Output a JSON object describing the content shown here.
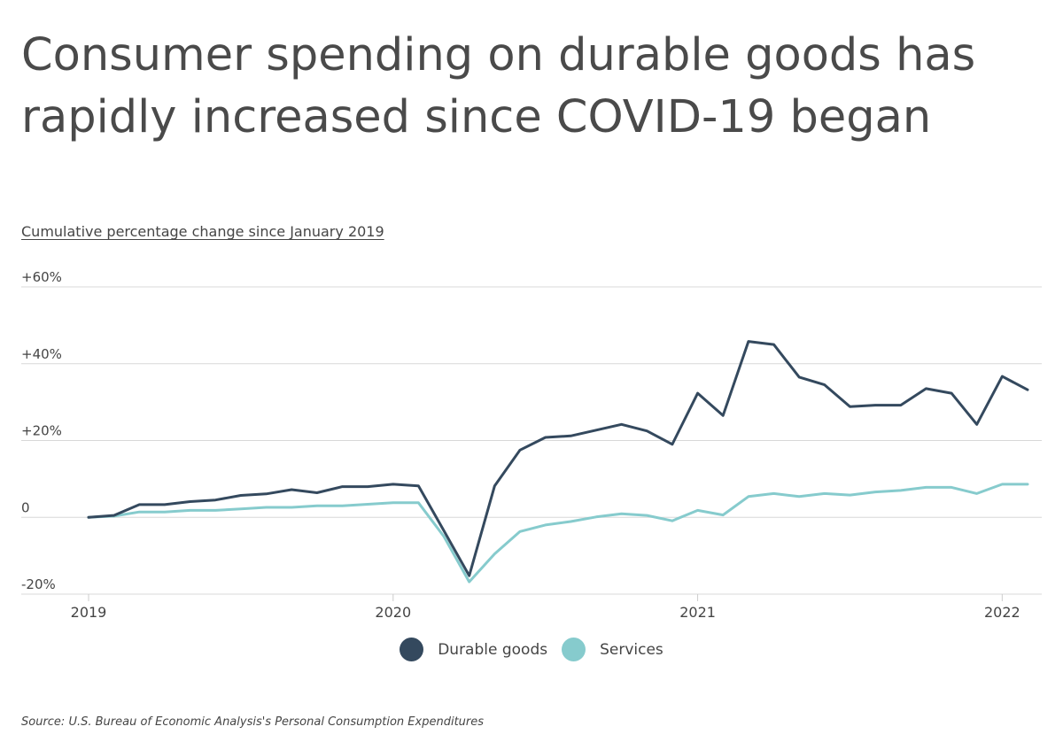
{
  "title": "Consumer spending on durable goods has rapidly increased since COVID-19 began",
  "subtitle": "Cumulative percentage change since January 2019",
  "source": "Source:  U.S. Bureau of Economic Analysis's Personal Consumption Expenditures",
  "colors": {
    "durable": "#34495e",
    "services": "#86cbcd",
    "grid": "#d8d8d8",
    "text": "#454545"
  },
  "chart_data": {
    "type": "line",
    "x": [
      "2019-01",
      "2019-02",
      "2019-03",
      "2019-04",
      "2019-05",
      "2019-06",
      "2019-07",
      "2019-08",
      "2019-09",
      "2019-10",
      "2019-11",
      "2019-12",
      "2020-01",
      "2020-02",
      "2020-03",
      "2020-04",
      "2020-05",
      "2020-06",
      "2020-07",
      "2020-08",
      "2020-09",
      "2020-10",
      "2020-11",
      "2020-12",
      "2021-01",
      "2021-02",
      "2021-03",
      "2021-04",
      "2021-05",
      "2021-06",
      "2021-07",
      "2021-08",
      "2021-09",
      "2021-10",
      "2021-11",
      "2021-12",
      "2022-01",
      "2022-02"
    ],
    "series": [
      {
        "name": "Durable goods",
        "values": [
          0,
          0.5,
          3.3,
          3.3,
          4.1,
          4.5,
          5.7,
          6.1,
          7.2,
          6.4,
          8.0,
          8.0,
          8.6,
          8.2,
          -3.5,
          -15.2,
          8.2,
          17.5,
          20.8,
          21.2,
          22.7,
          24.2,
          22.5,
          19.0,
          32.3,
          26.5,
          45.8,
          45.0,
          36.5,
          34.5,
          28.8,
          29.2,
          29.2,
          33.5,
          32.3,
          24.2,
          36.7,
          33.2
        ]
      },
      {
        "name": "Services",
        "values": [
          0,
          0.3,
          1.4,
          1.4,
          1.8,
          1.8,
          2.2,
          2.6,
          2.6,
          3.0,
          3.0,
          3.4,
          3.8,
          3.8,
          -5.0,
          -16.8,
          -9.5,
          -3.7,
          -2.0,
          -1.1,
          0.1,
          0.9,
          0.5,
          -0.9,
          1.8,
          0.6,
          5.4,
          6.2,
          5.4,
          6.2,
          5.8,
          6.6,
          7.0,
          7.8,
          7.8,
          6.2,
          8.6,
          8.6
        ]
      }
    ],
    "y_ticks": [
      -20,
      0,
      20,
      40,
      60
    ],
    "y_tick_labels": [
      "-20%",
      "0",
      "+20%",
      "+40%",
      "+60%"
    ],
    "x_ticks": [
      "2019-01",
      "2020-01",
      "2021-01",
      "2022-01"
    ],
    "x_tick_labels": [
      "2019",
      "2020",
      "2021",
      "2022"
    ],
    "ylim": [
      -20,
      60
    ],
    "ylabel": "Cumulative percentage change since January 2019",
    "xlabel": "",
    "grid": true,
    "legend_position": "bottom-center"
  }
}
